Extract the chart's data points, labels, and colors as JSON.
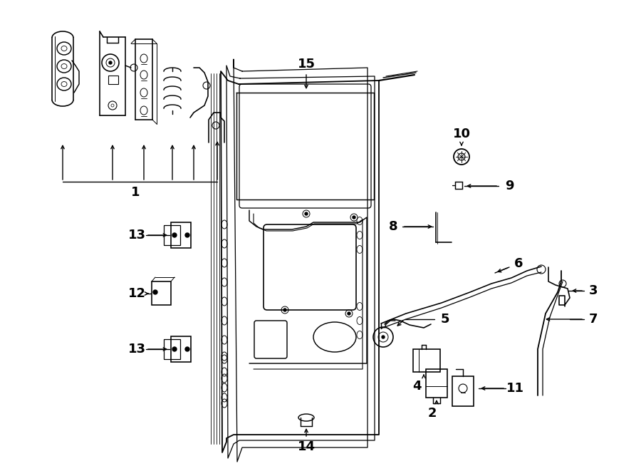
{
  "bg_color": "#ffffff",
  "line_color": "#000000",
  "figsize": [
    9.0,
    6.61
  ],
  "dpi": 100,
  "xlim": [
    0,
    900
  ],
  "ylim": [
    0,
    661
  ],
  "label_fontsize": 13,
  "label_fontweight": "bold"
}
